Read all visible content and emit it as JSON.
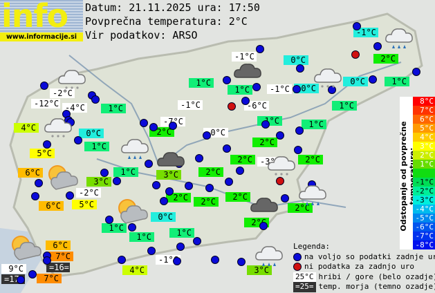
{
  "header": {
    "logo_text": "info",
    "logo_url": "www.informacije.si",
    "date_line": "Datum: 21.11.2025 ura: 17:50",
    "avg_line": "Povprečna temperatura: 2°C",
    "source_line": "Vir podatkov: ARSO"
  },
  "colors": {
    "white": "#ffffff",
    "cyan": "#22eedd",
    "spring": "#11ee77",
    "green": "#11ee00",
    "lime": "#77dd00",
    "yellowgreen": "#ccff00",
    "yellow": "#ffff00",
    "orange6": "#ffbb00",
    "orange7": "#ff8c00",
    "sea": "#333333",
    "station_ok": "#0a0ad8",
    "station_missing": "#d01010"
  },
  "stations": [
    {
      "temp": "-1°C",
      "c": "cyan"
    },
    {
      "temp": "-1°C",
      "c": "white"
    },
    {
      "temp": "0°C",
      "c": "cyan"
    },
    {
      "temp": "2°C",
      "c": "green"
    },
    {
      "temp": "1°C",
      "c": "spring"
    },
    {
      "temp": "1°C",
      "c": "spring"
    },
    {
      "temp": "-1°C",
      "c": "white"
    },
    {
      "temp": "0°C",
      "c": "cyan"
    },
    {
      "temp": "0°C",
      "c": "cyan"
    },
    {
      "temp": "1°C",
      "c": "spring"
    },
    {
      "temp": "-2°C",
      "c": "white"
    },
    {
      "temp": "-12°C",
      "c": "white"
    },
    {
      "temp": "-4°C",
      "c": "white"
    },
    {
      "temp": "1°C",
      "c": "spring"
    },
    {
      "temp": "-1°C",
      "c": "white"
    },
    {
      "temp": "-6°C",
      "c": "white"
    },
    {
      "temp": "1°C",
      "c": "spring"
    },
    {
      "temp": "1°C",
      "c": "spring"
    },
    {
      "temp": "-7°C",
      "c": "white"
    },
    {
      "temp": "1°C",
      "c": "spring"
    },
    {
      "temp": "4°C",
      "c": "yellowgreen"
    },
    {
      "temp": "0°C",
      "c": "cyan"
    },
    {
      "temp": "2°C",
      "c": "green"
    },
    {
      "temp": "0°C",
      "c": "white"
    },
    {
      "temp": "1°C",
      "c": "spring"
    },
    {
      "temp": "2°C",
      "c": "green"
    },
    {
      "temp": "5°C",
      "c": "yellow"
    },
    {
      "temp": "2°C",
      "c": "green"
    },
    {
      "temp": "-3°C",
      "c": "white"
    },
    {
      "temp": "2°C",
      "c": "green"
    },
    {
      "temp": "3°C",
      "c": "lime"
    },
    {
      "temp": "1°C",
      "c": "spring"
    },
    {
      "temp": "2°C",
      "c": "green"
    },
    {
      "temp": "6°C",
      "c": "orange6"
    },
    {
      "temp": "3°C",
      "c": "lime"
    },
    {
      "temp": "-2°C",
      "c": "white"
    },
    {
      "temp": "2°C",
      "c": "green"
    },
    {
      "temp": "2°C",
      "c": "green"
    },
    {
      "temp": "2°C",
      "c": "green"
    },
    {
      "temp": "6°C",
      "c": "orange6"
    },
    {
      "temp": "5°C",
      "c": "yellow"
    },
    {
      "temp": "2°C",
      "c": "green"
    },
    {
      "temp": "0°C",
      "c": "cyan"
    },
    {
      "temp": "2°C",
      "c": "green"
    },
    {
      "temp": "1°C",
      "c": "spring"
    },
    {
      "temp": "1°C",
      "c": "spring"
    },
    {
      "temp": "1°C",
      "c": "spring"
    },
    {
      "temp": "6°C",
      "c": "orange6"
    },
    {
      "temp": "7°C",
      "c": "orange7"
    },
    {
      "temp": "=16=",
      "c": "sea"
    },
    {
      "temp": "9°C",
      "c": "white"
    },
    {
      "temp": "=17=",
      "c": "sea"
    },
    {
      "temp": "7°C",
      "c": "orange7"
    },
    {
      "temp": "4°C",
      "c": "yellowgreen"
    },
    {
      "temp": "-1°C",
      "c": "white"
    },
    {
      "temp": "3°C",
      "c": "lime"
    }
  ],
  "weather_icons": [
    "rain-cloud",
    "dark-cloud",
    "snow-cloud",
    "snow-cloud",
    "snow-cloud",
    "rain-cloud",
    "dark-cloud",
    "snow-cloud",
    "sun-cloud",
    "sun-cloud",
    "rain-cloud",
    "dark-cloud",
    "sun-cloud",
    "rain-cloud"
  ],
  "scale": {
    "title": "Odstopanje od povprečne temperature:",
    "steps": [
      {
        "label": "8°C",
        "color": "#ff0000"
      },
      {
        "label": "7°C",
        "color": "#ff3300"
      },
      {
        "label": "6°C",
        "color": "#ff6600"
      },
      {
        "label": "5°C",
        "color": "#ff9900"
      },
      {
        "label": "4°C",
        "color": "#ffcc00"
      },
      {
        "label": "3°C",
        "color": "#ffff00"
      },
      {
        "label": "2°C",
        "color": "#ccee00"
      },
      {
        "label": "1°C",
        "color": "#66dd00"
      },
      {
        "label": "",
        "color": "#11dd11"
      },
      {
        "label": "-1°C",
        "color": "#00dd55"
      },
      {
        "label": "-2°C",
        "color": "#00ee99"
      },
      {
        "label": "-3°C",
        "color": "#00eedd"
      },
      {
        "label": "-4°C",
        "color": "#00bbee"
      },
      {
        "label": "-5°C",
        "color": "#0088ee"
      },
      {
        "label": "-6°C",
        "color": "#0055ee"
      },
      {
        "label": "-7°C",
        "color": "#0033ee"
      },
      {
        "label": "-8°C",
        "color": "#0011ee"
      }
    ]
  },
  "legend": {
    "title": "Legenda:",
    "available": "na voljo so podatki zadnje ure",
    "missing": "ni podatka za zadnjo uro",
    "hill_sample": "25°C",
    "hill_text": "hribi / gore (belo ozadje)",
    "sea_sample": "=25=",
    "sea_text": "temp. morja (temno ozadje)"
  }
}
